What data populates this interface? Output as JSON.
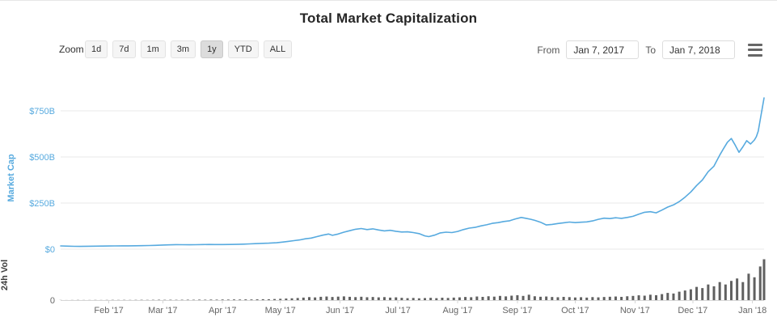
{
  "title": "Total Market Capitalization",
  "toolbar": {
    "zoom_label": "Zoom",
    "buttons": [
      {
        "label": "1d",
        "active": false
      },
      {
        "label": "7d",
        "active": false
      },
      {
        "label": "1m",
        "active": false
      },
      {
        "label": "3m",
        "active": false
      },
      {
        "label": "1y",
        "active": true
      },
      {
        "label": "YTD",
        "active": false
      },
      {
        "label": "ALL",
        "active": false
      }
    ],
    "from_label": "From",
    "from_value": "Jan 7, 2017",
    "to_label": "To",
    "to_value": "Jan 7, 2018",
    "menu_icon": "hamburger-icon"
  },
  "colors": {
    "accent_blue": "#57aadf",
    "volume_bar": "#606060",
    "grid": "#e8e8e8",
    "axis_line": "#d6d6d6",
    "x_label": "#666666",
    "vol_zero": "#666666"
  },
  "chart_data": {
    "type": "line",
    "title": "Total Market Capitalization",
    "x_axis": {
      "start": "Jan 7, 2017",
      "end": "Jan 7, 2018",
      "range_days": [
        0,
        365
      ],
      "ticks": [
        "Feb '17",
        "Mar '17",
        "Apr '17",
        "May '17",
        "Jun '17",
        "Jul '17",
        "Aug '17",
        "Sep '17",
        "Oct '17",
        "Nov '17",
        "Dec '17",
        "Jan '18"
      ],
      "tick_days": [
        25,
        53,
        84,
        114,
        145,
        175,
        206,
        237,
        267,
        298,
        328,
        359
      ]
    },
    "y_axis": {
      "label": "Market Cap",
      "unit": "USD billions",
      "ticks": [
        "$0",
        "$250B",
        "$500B",
        "$750B"
      ],
      "tick_values": [
        0,
        250,
        500,
        750
      ],
      "max": 870
    },
    "vol_axis": {
      "label": "24h Vol",
      "ticks": [
        "0"
      ],
      "tick_values": [
        0
      ],
      "max": 70
    },
    "market_cap_series": {
      "name": "Market Cap",
      "color": "#57aadf",
      "unit": "USD billions",
      "points": [
        [
          0,
          17.7
        ],
        [
          4,
          16.2
        ],
        [
          7,
          15.2
        ],
        [
          10,
          14.8
        ],
        [
          14,
          15.8
        ],
        [
          18,
          16.2
        ],
        [
          21,
          16.6
        ],
        [
          25,
          17.2
        ],
        [
          28,
          17.6
        ],
        [
          32,
          17.8
        ],
        [
          35,
          18
        ],
        [
          39,
          18.6
        ],
        [
          42,
          19
        ],
        [
          46,
          19.8
        ],
        [
          49,
          20.6
        ],
        [
          53,
          22.4
        ],
        [
          56,
          23.2
        ],
        [
          60,
          24.6
        ],
        [
          63,
          24.2
        ],
        [
          67,
          23.6
        ],
        [
          70,
          24
        ],
        [
          74,
          25.2
        ],
        [
          77,
          25.6
        ],
        [
          80,
          24.8
        ],
        [
          84,
          25.2
        ],
        [
          88,
          25.6
        ],
        [
          91,
          26
        ],
        [
          95,
          27.4
        ],
        [
          98,
          28.6
        ],
        [
          101,
          30
        ],
        [
          105,
          31.5
        ],
        [
          108,
          32.5
        ],
        [
          112,
          34.5
        ],
        [
          115,
          38
        ],
        [
          118,
          42
        ],
        [
          121,
          46
        ],
        [
          124,
          50
        ],
        [
          127,
          56
        ],
        [
          130,
          60
        ],
        [
          133,
          68
        ],
        [
          136,
          76
        ],
        [
          139,
          82
        ],
        [
          141,
          75
        ],
        [
          144,
          82
        ],
        [
          147,
          92
        ],
        [
          150,
          100
        ],
        [
          153,
          108
        ],
        [
          156,
          112
        ],
        [
          159,
          106
        ],
        [
          162,
          110
        ],
        [
          165,
          104
        ],
        [
          168,
          99
        ],
        [
          171,
          102
        ],
        [
          174,
          97
        ],
        [
          177,
          93
        ],
        [
          180,
          94
        ],
        [
          183,
          90
        ],
        [
          186,
          84
        ],
        [
          189,
          72
        ],
        [
          191,
          68
        ],
        [
          194,
          76
        ],
        [
          197,
          88
        ],
        [
          200,
          92
        ],
        [
          203,
          90
        ],
        [
          206,
          96
        ],
        [
          209,
          106
        ],
        [
          212,
          114
        ],
        [
          215,
          118
        ],
        [
          218,
          126
        ],
        [
          221,
          132
        ],
        [
          224,
          140
        ],
        [
          227,
          144
        ],
        [
          230,
          150
        ],
        [
          233,
          154
        ],
        [
          236,
          164
        ],
        [
          239,
          172
        ],
        [
          241,
          168
        ],
        [
          244,
          162
        ],
        [
          246,
          156
        ],
        [
          249,
          146
        ],
        [
          252,
          131
        ],
        [
          255,
          134
        ],
        [
          258,
          139
        ],
        [
          261,
          143
        ],
        [
          264,
          147
        ],
        [
          267,
          144
        ],
        [
          270,
          146
        ],
        [
          273,
          148
        ],
        [
          276,
          153
        ],
        [
          279,
          162
        ],
        [
          282,
          168
        ],
        [
          285,
          166
        ],
        [
          288,
          170
        ],
        [
          291,
          167
        ],
        [
          294,
          172
        ],
        [
          297,
          178
        ],
        [
          300,
          190
        ],
        [
          303,
          200
        ],
        [
          306,
          203
        ],
        [
          309,
          197
        ],
        [
          312,
          212
        ],
        [
          315,
          228
        ],
        [
          318,
          240
        ],
        [
          321,
          258
        ],
        [
          324,
          282
        ],
        [
          327,
          310
        ],
        [
          330,
          345
        ],
        [
          333,
          375
        ],
        [
          336,
          420
        ],
        [
          339,
          450
        ],
        [
          342,
          510
        ],
        [
          344,
          545
        ],
        [
          346,
          580
        ],
        [
          348,
          600
        ],
        [
          350,
          565
        ],
        [
          352,
          525
        ],
        [
          354,
          555
        ],
        [
          356,
          588
        ],
        [
          358,
          570
        ],
        [
          360,
          592
        ],
        [
          361,
          610
        ],
        [
          362,
          640
        ],
        [
          363,
          700
        ],
        [
          364,
          760
        ],
        [
          365,
          820
        ]
      ]
    },
    "volume_series": {
      "name": "24h Vol",
      "type": "bar",
      "color": "#606060",
      "unit": "USD billions",
      "step_days": 3,
      "values": [
        0.2,
        0.1,
        0.2,
        0.3,
        0.2,
        0.2,
        0.3,
        0.2,
        0.3,
        0.4,
        0.3,
        0.4,
        0.3,
        0.4,
        0.5,
        0.4,
        0.5,
        0.6,
        0.5,
        0.6,
        0.5,
        0.6,
        0.7,
        0.6,
        0.8,
        0.7,
        0.9,
        0.8,
        1.0,
        0.9,
        1.1,
        1.0,
        1.2,
        1.1,
        1.3,
        1.5,
        1.4,
        1.8,
        2.2,
        2.6,
        3.0,
        3.5,
        4.2,
        5.0,
        4.5,
        5.5,
        6.0,
        5.2,
        5.8,
        6.2,
        5.5,
        5.0,
        5.6,
        4.8,
        5.2,
        4.6,
        5.0,
        4.2,
        4.6,
        3.8,
        3.2,
        3.6,
        3.0,
        3.4,
        3.8,
        3.2,
        4.0,
        3.6,
        4.2,
        4.6,
        5.2,
        4.8,
        6.0,
        5.4,
        6.4,
        5.8,
        7.0,
        6.2,
        7.4,
        8.2,
        7.0,
        9.0,
        6.4,
        5.6,
        6.0,
        5.2,
        4.8,
        5.4,
        5.0,
        4.4,
        4.8,
        4.2,
        5.0,
        4.6,
        5.2,
        5.6,
        6.0,
        5.4,
        6.4,
        7.0,
        8.0,
        7.4,
        9.0,
        8.2,
        10.0,
        12.0,
        11.0,
        14.0,
        16.0,
        18.0,
        22.0,
        20.0,
        26.0,
        23.0,
        30.0,
        26.0,
        32.0,
        36.0,
        30.0,
        44.0,
        38.0,
        56.0,
        68.0
      ]
    }
  }
}
